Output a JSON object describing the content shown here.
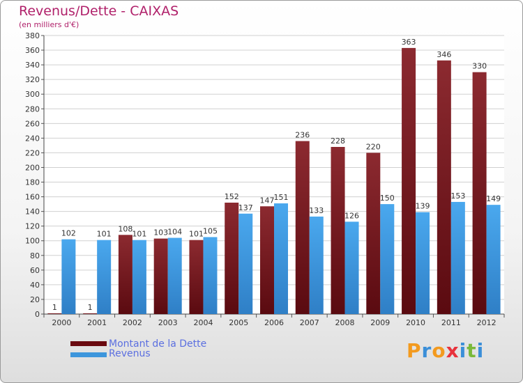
{
  "title": "Revenus/Dette - CAIXAS",
  "subtitle": "(en milliers d'€)",
  "chart_data": {
    "type": "bar",
    "categories": [
      "2000",
      "2001",
      "2002",
      "2003",
      "2004",
      "2005",
      "2006",
      "2007",
      "2008",
      "2009",
      "2010",
      "2011",
      "2012"
    ],
    "series": [
      {
        "name": "Montant de la Dette",
        "values": [
          1,
          1,
          108,
          103,
          101,
          152,
          147,
          236,
          228,
          220,
          363,
          346,
          330
        ],
        "color": "#7a1218"
      },
      {
        "name": "Revenus",
        "values": [
          102,
          101,
          101,
          104,
          105,
          137,
          151,
          133,
          126,
          150,
          139,
          153,
          149
        ],
        "color": "#3d96dc"
      }
    ],
    "ylim": [
      0,
      380
    ],
    "yticks": [
      0,
      20,
      40,
      60,
      80,
      100,
      120,
      140,
      160,
      180,
      200,
      220,
      240,
      260,
      280,
      300,
      320,
      340,
      360,
      380
    ],
    "grid": true,
    "legend": "bottom-left"
  },
  "logo": {
    "letters": [
      "P",
      "r",
      "o",
      "x",
      "i",
      "t",
      "i"
    ],
    "colors": [
      "#f39a1e",
      "#3b8fd8",
      "#f39a1e",
      "#e8323c",
      "#3b8fd8",
      "#7ab93a",
      "#3b8fd8"
    ]
  }
}
